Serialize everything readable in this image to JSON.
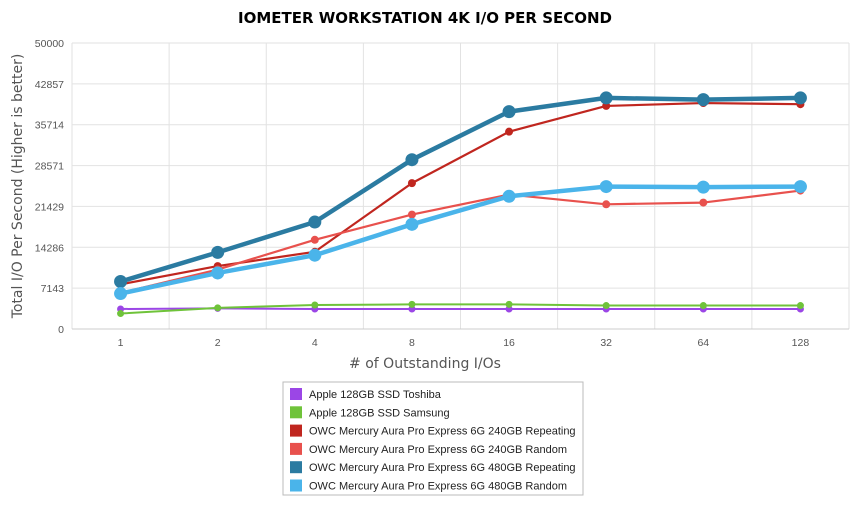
{
  "chart_data": {
    "type": "line",
    "title": "IOMETER WORKSTATION 4K I/O PER SECOND",
    "xlabel": "# of Outstanding I/Os",
    "ylabel": "Total I/O Per Second (Higher is better)",
    "categories": [
      "1",
      "2",
      "4",
      "8",
      "16",
      "32",
      "64",
      "128"
    ],
    "ylim": [
      0,
      50000
    ],
    "yticks": [
      0,
      7143,
      14286,
      21429,
      28571,
      35714,
      42857,
      50000
    ],
    "grid": true,
    "legend_position": "bottom",
    "series": [
      {
        "name": "Apple 128GB SSD Toshiba",
        "color": "#9b46e6",
        "weight": "normal",
        "values": [
          3500,
          3600,
          3500,
          3500,
          3500,
          3500,
          3500,
          3500
        ]
      },
      {
        "name": "Apple 128GB SSD Samsung",
        "color": "#6fc33a",
        "weight": "normal",
        "values": [
          2700,
          3700,
          4200,
          4300,
          4300,
          4100,
          4100,
          4100
        ]
      },
      {
        "name": "OWC Mercury Aura Pro Express 6G 240GB Repeating",
        "color": "#c0261f",
        "weight": "medium",
        "values": [
          7800,
          11000,
          13500,
          25500,
          34500,
          39000,
          39500,
          39300
        ]
      },
      {
        "name": "OWC Mercury Aura Pro Express 6G 240GB Random",
        "color": "#e8514d",
        "weight": "medium",
        "values": [
          6300,
          10400,
          15600,
          20000,
          23500,
          21800,
          22100,
          24200
        ]
      },
      {
        "name": "OWC Mercury Aura Pro Express 6G 480GB Repeating",
        "color": "#2b7ba1",
        "weight": "bold",
        "values": [
          8300,
          13400,
          18700,
          29600,
          38000,
          40400,
          40100,
          40400
        ]
      },
      {
        "name": "OWC Mercury Aura Pro Express 6G 480GB Random",
        "color": "#4ab4ea",
        "weight": "bold",
        "values": [
          6200,
          9800,
          12900,
          18300,
          23200,
          24900,
          24800,
          24900
        ]
      }
    ]
  }
}
